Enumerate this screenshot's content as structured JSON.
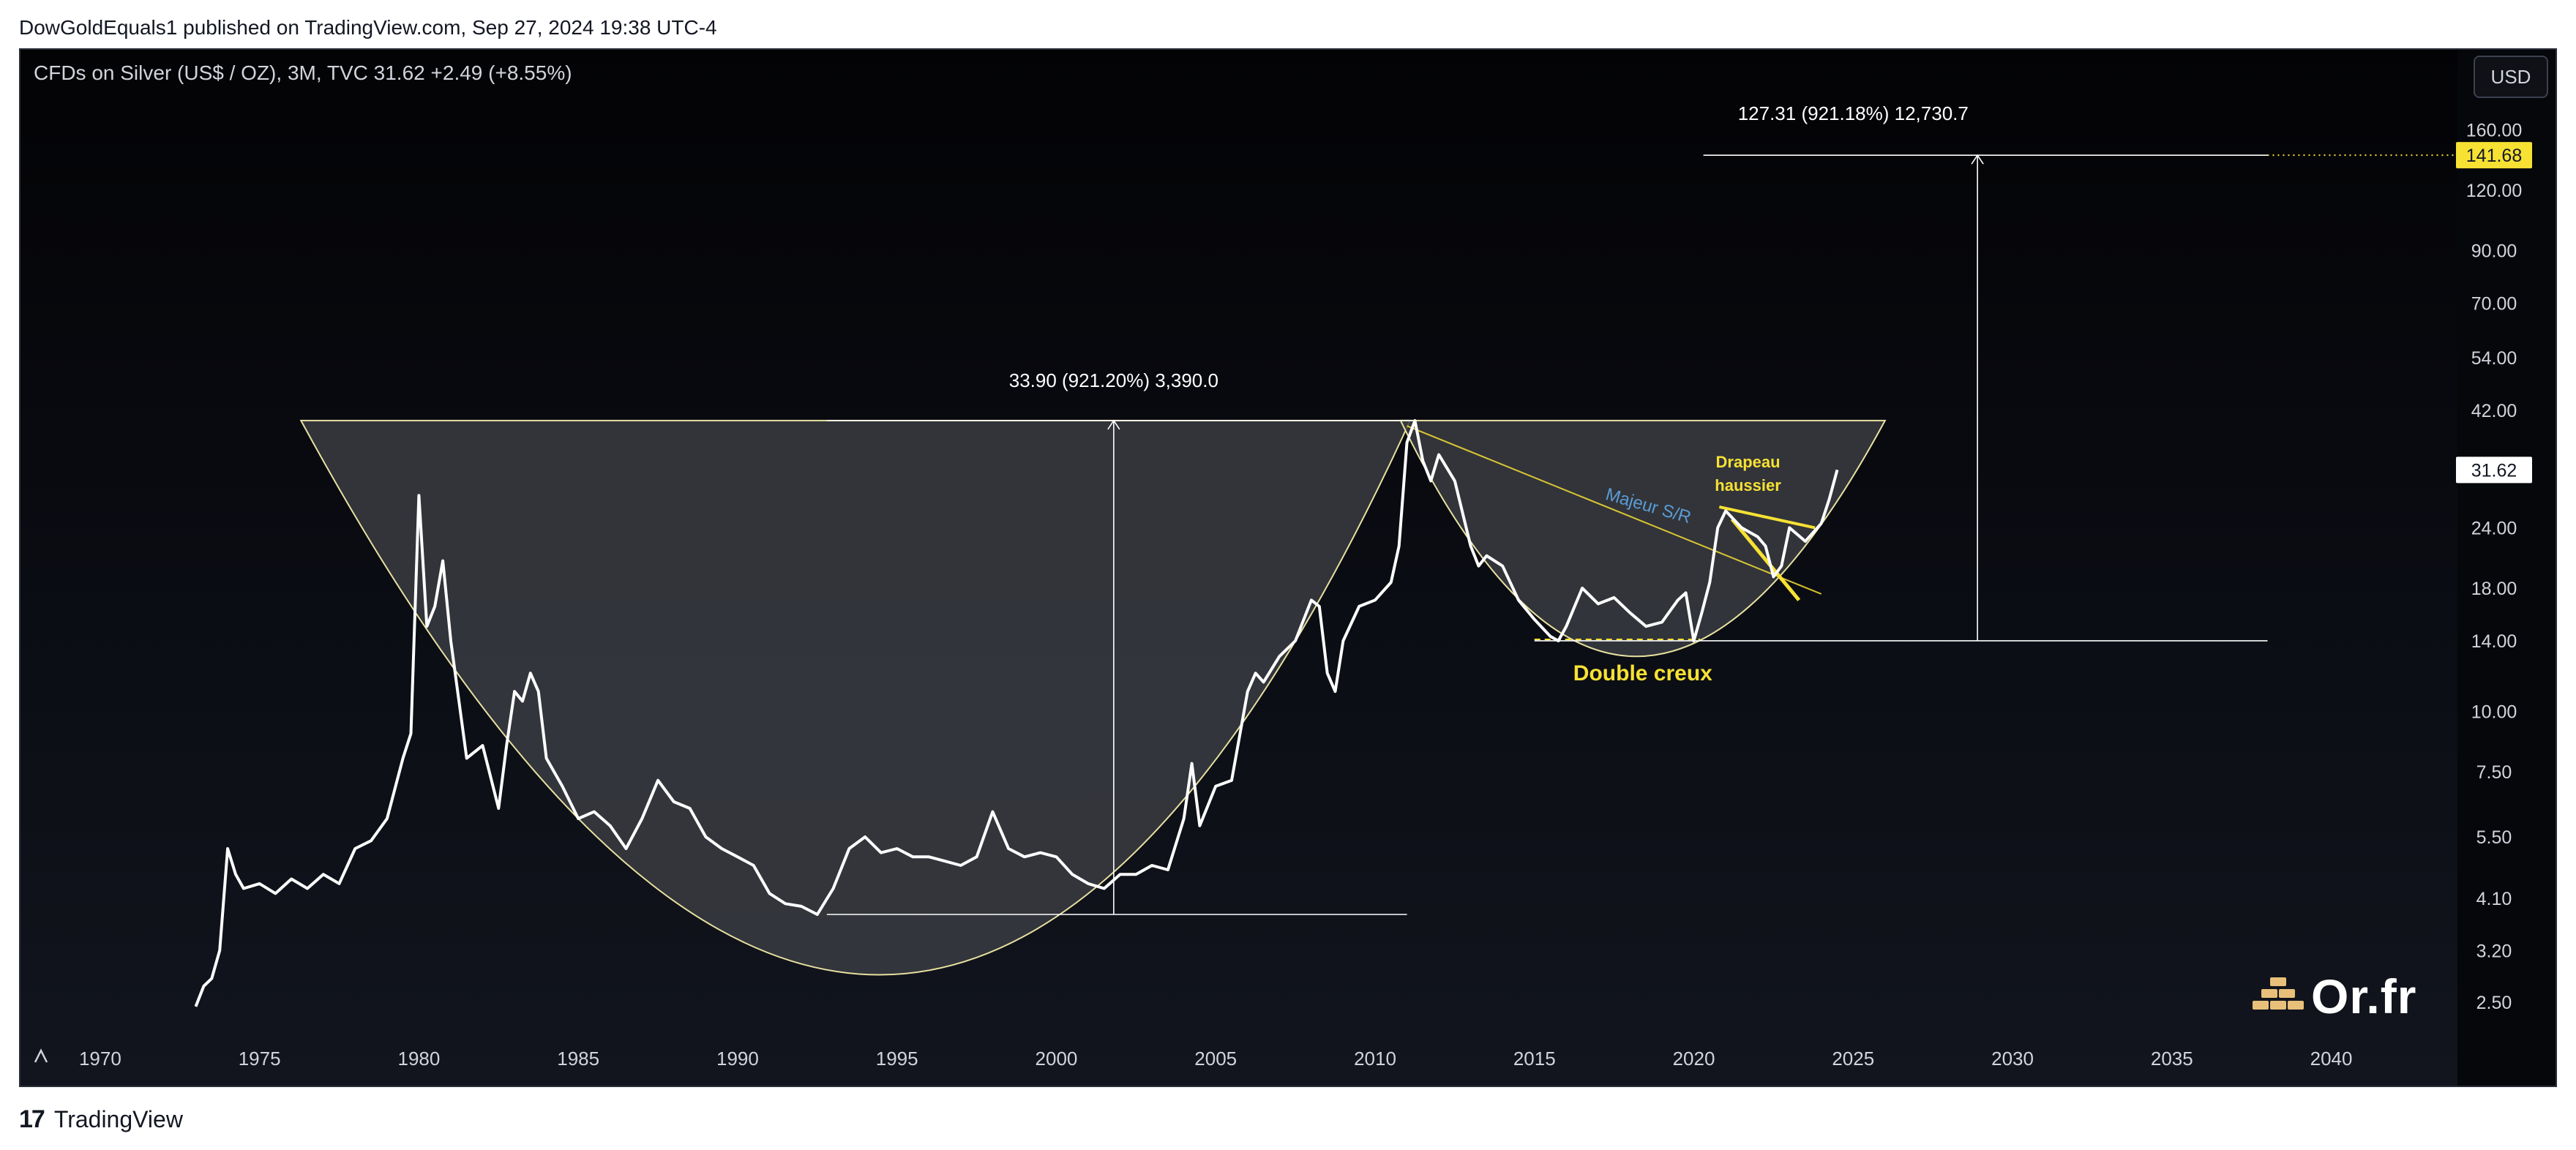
{
  "header": {
    "published_by": "DowGoldEquals1 published on TradingView.com, Sep 27, 2024 19:38 UTC-4"
  },
  "legend": {
    "symbol_line": "CFDs on Silver (US$ / OZ), 3M, TVC  31.62  +2.49 (+8.55%)"
  },
  "currency_button": "USD",
  "footer": {
    "logo": "17",
    "name": "TradingView"
  },
  "watermark": {
    "brand": "Or.fr"
  },
  "colors": {
    "background": "#05060a",
    "price_line": "#ffffff",
    "bowl_fill": "#3a3c42",
    "bowl_stroke": "#e8e1a0",
    "measure_line": "#ffffff",
    "annotation_yellow": "#f7e133",
    "sr_blue": "#5b9bd5",
    "target_label_bg": "#f7e133"
  },
  "chart_data": {
    "type": "line",
    "y_scale": "log",
    "x_axis_ticks": [
      "1970",
      "1975",
      "1980",
      "1985",
      "1990",
      "1995",
      "2000",
      "2005",
      "2010",
      "2015",
      "2020",
      "2025",
      "2030",
      "2035",
      "2040"
    ],
    "y_axis_ticks": [
      "160.00",
      "120.00",
      "90.00",
      "70.00",
      "54.00",
      "42.00",
      "24.00",
      "18.00",
      "14.00",
      "10.00",
      "7.50",
      "5.50",
      "4.10",
      "3.20",
      "2.50"
    ],
    "ylim": [
      2.3,
      190
    ],
    "xlim": [
      1967.5,
      2043.5
    ],
    "current_price_label": "31.62",
    "target_price_label": "141.68",
    "series": [
      {
        "name": "CFDs on Silver (US$ / OZ)",
        "x": [
          1973.0,
          1973.25,
          1973.5,
          1973.75,
          1974.0,
          1974.25,
          1974.5,
          1975.0,
          1975.5,
          1976.0,
          1976.5,
          1977.0,
          1977.5,
          1978.0,
          1978.5,
          1979.0,
          1979.5,
          1979.75,
          1980.0,
          1980.25,
          1980.5,
          1980.75,
          1981.0,
          1981.5,
          1982.0,
          1982.5,
          1982.75,
          1983.0,
          1983.25,
          1983.5,
          1983.75,
          1984.0,
          1984.5,
          1985.0,
          1985.5,
          1986.0,
          1986.5,
          1987.0,
          1987.5,
          1988.0,
          1988.5,
          1989.0,
          1989.5,
          1990.0,
          1990.5,
          1991.0,
          1991.5,
          1992.0,
          1992.5,
          1993.0,
          1993.5,
          1994.0,
          1994.5,
          1995.0,
          1995.5,
          1996.0,
          1996.5,
          1997.0,
          1997.5,
          1998.0,
          1998.5,
          1999.0,
          1999.5,
          2000.0,
          2000.5,
          2001.0,
          2001.5,
          2002.0,
          2002.5,
          2003.0,
          2003.5,
          2004.0,
          2004.25,
          2004.5,
          2005.0,
          2005.5,
          2006.0,
          2006.25,
          2006.5,
          2007.0,
          2007.5,
          2008.0,
          2008.25,
          2008.5,
          2008.75,
          2009.0,
          2009.5,
          2010.0,
          2010.5,
          2010.75,
          2011.0,
          2011.25,
          2011.5,
          2011.75,
          2012.0,
          2012.5,
          2013.0,
          2013.25,
          2013.5,
          2014.0,
          2014.5,
          2015.0,
          2015.5,
          2015.75,
          2016.0,
          2016.5,
          2017.0,
          2017.5,
          2018.0,
          2018.5,
          2019.0,
          2019.5,
          2019.75,
          2020.0,
          2020.25,
          2020.5,
          2020.75,
          2021.0,
          2021.5,
          2022.0,
          2022.25,
          2022.5,
          2022.75,
          2023.0,
          2023.5,
          2024.0,
          2024.25,
          2024.5
        ],
        "values": [
          2.45,
          2.7,
          2.8,
          3.2,
          5.2,
          4.6,
          4.3,
          4.4,
          4.2,
          4.5,
          4.3,
          4.6,
          4.4,
          5.2,
          5.4,
          6.0,
          8.0,
          9.0,
          28.0,
          15.0,
          16.5,
          20.5,
          14.0,
          8.0,
          8.5,
          6.3,
          8.5,
          11.0,
          10.5,
          12.0,
          11.0,
          8.0,
          7.0,
          6.0,
          6.2,
          5.8,
          5.2,
          6.0,
          7.2,
          6.5,
          6.3,
          5.5,
          5.2,
          5.0,
          4.8,
          4.2,
          4.0,
          3.95,
          3.8,
          4.3,
          5.2,
          5.5,
          5.1,
          5.2,
          5.0,
          5.0,
          4.9,
          4.8,
          5.0,
          6.2,
          5.2,
          5.0,
          5.1,
          5.0,
          4.6,
          4.4,
          4.3,
          4.6,
          4.6,
          4.8,
          4.7,
          6.0,
          7.8,
          5.8,
          7.0,
          7.2,
          11.0,
          12.0,
          11.5,
          13.0,
          14.0,
          17.0,
          16.5,
          12.0,
          11.0,
          14.0,
          16.5,
          17.0,
          18.5,
          22.0,
          36.0,
          40.0,
          33.0,
          30.0,
          34.0,
          30.0,
          22.0,
          20.0,
          21.0,
          20.0,
          17.0,
          15.5,
          14.3,
          14.0,
          15.0,
          18.0,
          16.7,
          17.2,
          16.0,
          15.0,
          15.3,
          17.0,
          17.6,
          14.0,
          16.0,
          18.5,
          24.0,
          26.0,
          24.0,
          23.0,
          22.0,
          19.0,
          20.0,
          24.0,
          22.5,
          24.5,
          27.5,
          31.62
        ]
      }
    ],
    "annotations": [
      {
        "text": "33.90 (921.20%) 3,390.0"
      },
      {
        "text": "127.31 (921.18%) 12,730.7"
      },
      {
        "text": "Majeur S/R"
      },
      {
        "text": "Drapeau"
      },
      {
        "text": "haussier"
      },
      {
        "text": "Double creux"
      }
    ]
  }
}
